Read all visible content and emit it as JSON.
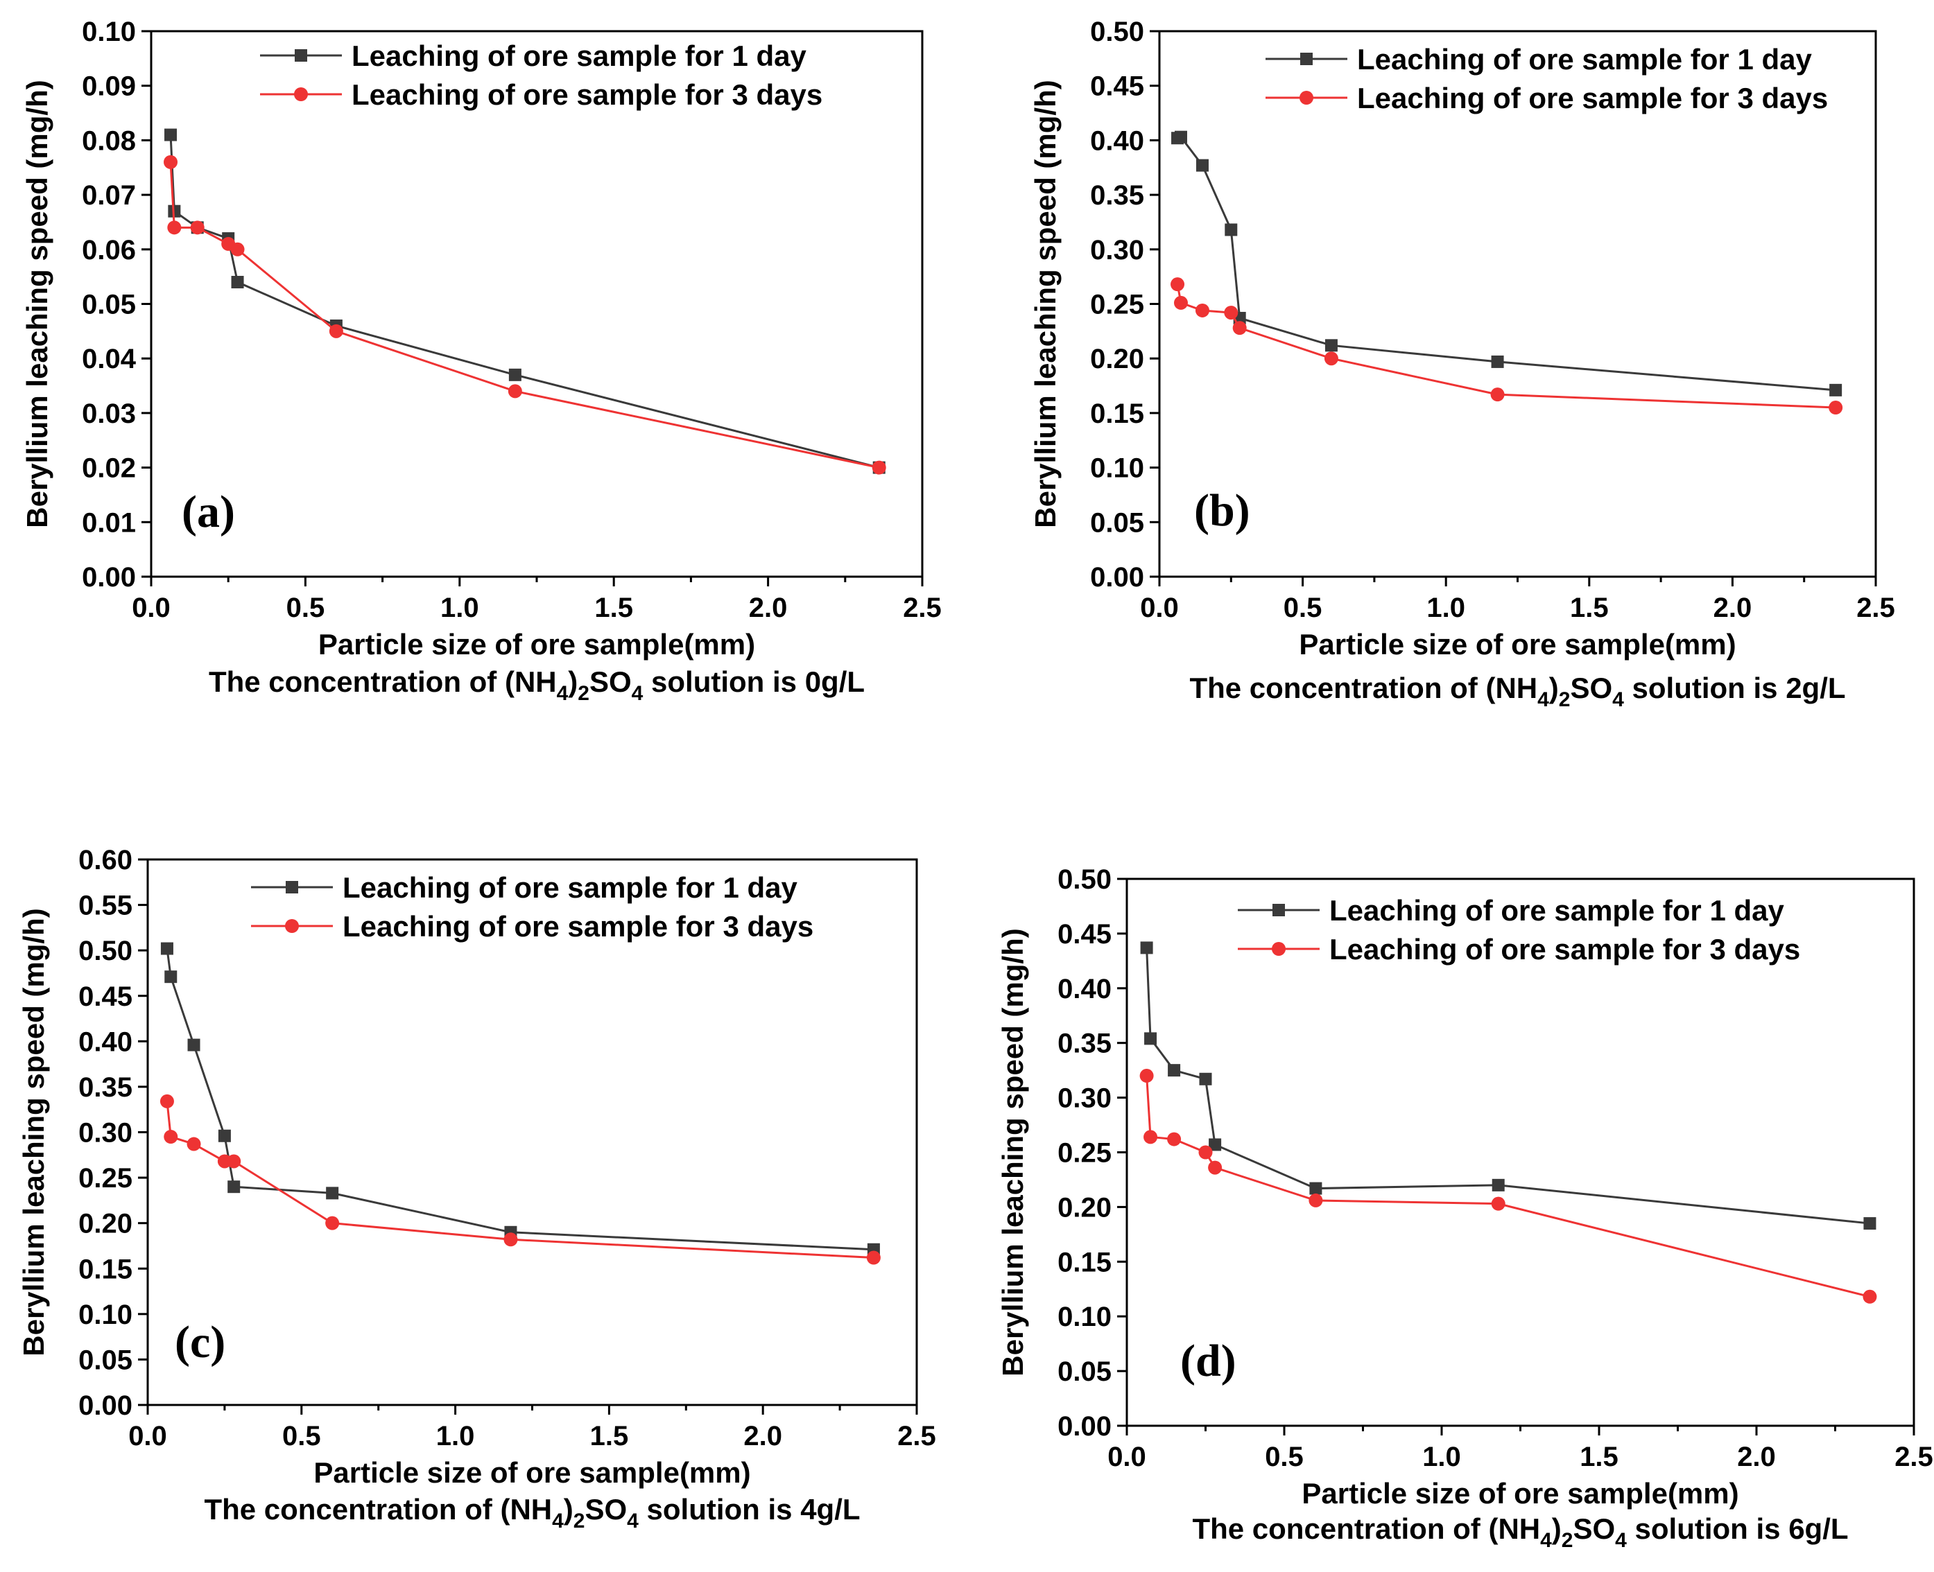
{
  "chart_data": [
    {
      "type": "line",
      "panel_label": "(a)",
      "xlabel": "Particle size of ore sample(mm)",
      "ylabel": "Beryllium  leaching  speed (mg/h)",
      "caption": {
        "prefix": "The concentration of (NH",
        "sub1": "4",
        "mid": ")",
        "sub2": "2",
        "so": "SO",
        "sub3": "4",
        "suffix": " solution is 0g/L"
      },
      "xlim": [
        0,
        2.5
      ],
      "ylim": [
        0,
        0.1
      ],
      "xticks": [
        "0.0",
        "0.5",
        "1.0",
        "1.5",
        "2.0",
        "2.5"
      ],
      "yticks": [
        "0.00",
        "0.01",
        "0.02",
        "0.03",
        "0.04",
        "0.05",
        "0.06",
        "0.07",
        "0.08",
        "0.09",
        "0.10"
      ],
      "legend_position": "top-right",
      "series": [
        {
          "name": "Leaching of ore sample for 1 day",
          "marker": "square",
          "color": "#3a3a3a",
          "x": [
            0.063,
            0.075,
            0.15,
            0.25,
            0.28,
            0.6,
            1.18,
            2.36
          ],
          "y": [
            0.081,
            0.067,
            0.064,
            0.062,
            0.054,
            0.046,
            0.037,
            0.02
          ]
        },
        {
          "name": "Leaching of ore sample for 3 days",
          "marker": "circle",
          "color": "#ee3333",
          "x": [
            0.063,
            0.075,
            0.15,
            0.25,
            0.28,
            0.6,
            1.18,
            2.36
          ],
          "y": [
            0.076,
            0.064,
            0.064,
            0.061,
            0.06,
            0.045,
            0.034,
            0.02
          ]
        }
      ]
    },
    {
      "type": "line",
      "panel_label": "(b)",
      "xlabel": "Particle size of ore sample(mm)",
      "ylabel": "Beryllium  leaching  speed (mg/h)",
      "caption": {
        "prefix": "The concentration of (NH",
        "sub1": "4",
        "mid": ")",
        "sub2": "2",
        "so": "SO",
        "sub3": "4",
        "suffix": " solution is 2g/L"
      },
      "xlim": [
        0,
        2.5
      ],
      "ylim": [
        0,
        0.5
      ],
      "xticks": [
        "0.0",
        "0.5",
        "1.0",
        "1.5",
        "2.0",
        "2.5"
      ],
      "yticks": [
        "0.00",
        "0.05",
        "0.10",
        "0.15",
        "0.20",
        "0.25",
        "0.30",
        "0.35",
        "0.40",
        "0.45",
        "0.50"
      ],
      "legend_position": "top-right",
      "series": [
        {
          "name": "Leaching of ore sample for 1 day",
          "marker": "square",
          "color": "#3a3a3a",
          "x": [
            0.063,
            0.075,
            0.15,
            0.25,
            0.28,
            0.6,
            1.18,
            2.36
          ],
          "y": [
            0.402,
            0.403,
            0.377,
            0.318,
            0.237,
            0.212,
            0.197,
            0.171
          ]
        },
        {
          "name": "Leaching of ore sample for 3 days",
          "marker": "circle",
          "color": "#ee3333",
          "x": [
            0.063,
            0.075,
            0.15,
            0.25,
            0.28,
            0.6,
            1.18,
            2.36
          ],
          "y": [
            0.268,
            0.251,
            0.244,
            0.242,
            0.228,
            0.2,
            0.167,
            0.155
          ]
        }
      ]
    },
    {
      "type": "line",
      "panel_label": "(c)",
      "xlabel": "Particle size of ore sample(mm)",
      "ylabel": "Beryllium  leaching  speed (mg/h)",
      "caption": {
        "prefix": "The concentration of (NH",
        "sub1": "4",
        "mid": ")",
        "sub2": "2",
        "so": "SO",
        "sub3": "4",
        "suffix": " solution is 4g/L"
      },
      "xlim": [
        0,
        2.5
      ],
      "ylim": [
        0,
        0.6
      ],
      "xticks": [
        "0.0",
        "0.5",
        "1.0",
        "1.5",
        "2.0",
        "2.5"
      ],
      "yticks": [
        "0.00",
        "0.05",
        "0.10",
        "0.15",
        "0.20",
        "0.25",
        "0.30",
        "0.35",
        "0.40",
        "0.45",
        "0.50",
        "0.55",
        "0.60"
      ],
      "legend_position": "top-right",
      "series": [
        {
          "name": "Leaching of ore sample for 1 day",
          "marker": "square",
          "color": "#3a3a3a",
          "x": [
            0.063,
            0.075,
            0.15,
            0.25,
            0.28,
            0.6,
            1.18,
            2.36
          ],
          "y": [
            0.502,
            0.471,
            0.396,
            0.296,
            0.24,
            0.233,
            0.19,
            0.171
          ]
        },
        {
          "name": "Leaching of ore sample for 3 days",
          "marker": "circle",
          "color": "#ee3333",
          "x": [
            0.063,
            0.075,
            0.15,
            0.25,
            0.28,
            0.6,
            1.18,
            2.36
          ],
          "y": [
            0.334,
            0.295,
            0.287,
            0.268,
            0.268,
            0.2,
            0.182,
            0.162
          ]
        }
      ]
    },
    {
      "type": "line",
      "panel_label": "(d)",
      "xlabel": "Particle size of ore sample(mm)",
      "ylabel": "Beryllium  leaching  speed (mg/h)",
      "caption": {
        "prefix": "The concentration of (NH",
        "sub1": "4",
        "mid": ")",
        "sub2": "2",
        "so": "SO",
        "sub3": "4",
        "suffix": " solution is 6g/L"
      },
      "xlim": [
        0,
        2.5
      ],
      "ylim": [
        0,
        0.5
      ],
      "xticks": [
        "0.0",
        "0.5",
        "1.0",
        "1.5",
        "2.0",
        "2.5"
      ],
      "yticks": [
        "0.00",
        "0.05",
        "0.10",
        "0.15",
        "0.20",
        "0.25",
        "0.30",
        "0.35",
        "0.40",
        "0.45",
        "0.50"
      ],
      "legend_position": "top-right",
      "series": [
        {
          "name": "Leaching of ore sample for 1 day",
          "marker": "square",
          "color": "#3a3a3a",
          "x": [
            0.063,
            0.075,
            0.15,
            0.25,
            0.28,
            0.6,
            1.18,
            2.36
          ],
          "y": [
            0.437,
            0.354,
            0.325,
            0.317,
            0.257,
            0.217,
            0.22,
            0.185
          ]
        },
        {
          "name": "Leaching of ore sample for 3 days",
          "marker": "circle",
          "color": "#ee3333",
          "x": [
            0.063,
            0.075,
            0.15,
            0.25,
            0.28,
            0.6,
            1.18,
            2.36
          ],
          "y": [
            0.32,
            0.264,
            0.262,
            0.25,
            0.236,
            0.206,
            0.203,
            0.118
          ]
        }
      ]
    }
  ]
}
